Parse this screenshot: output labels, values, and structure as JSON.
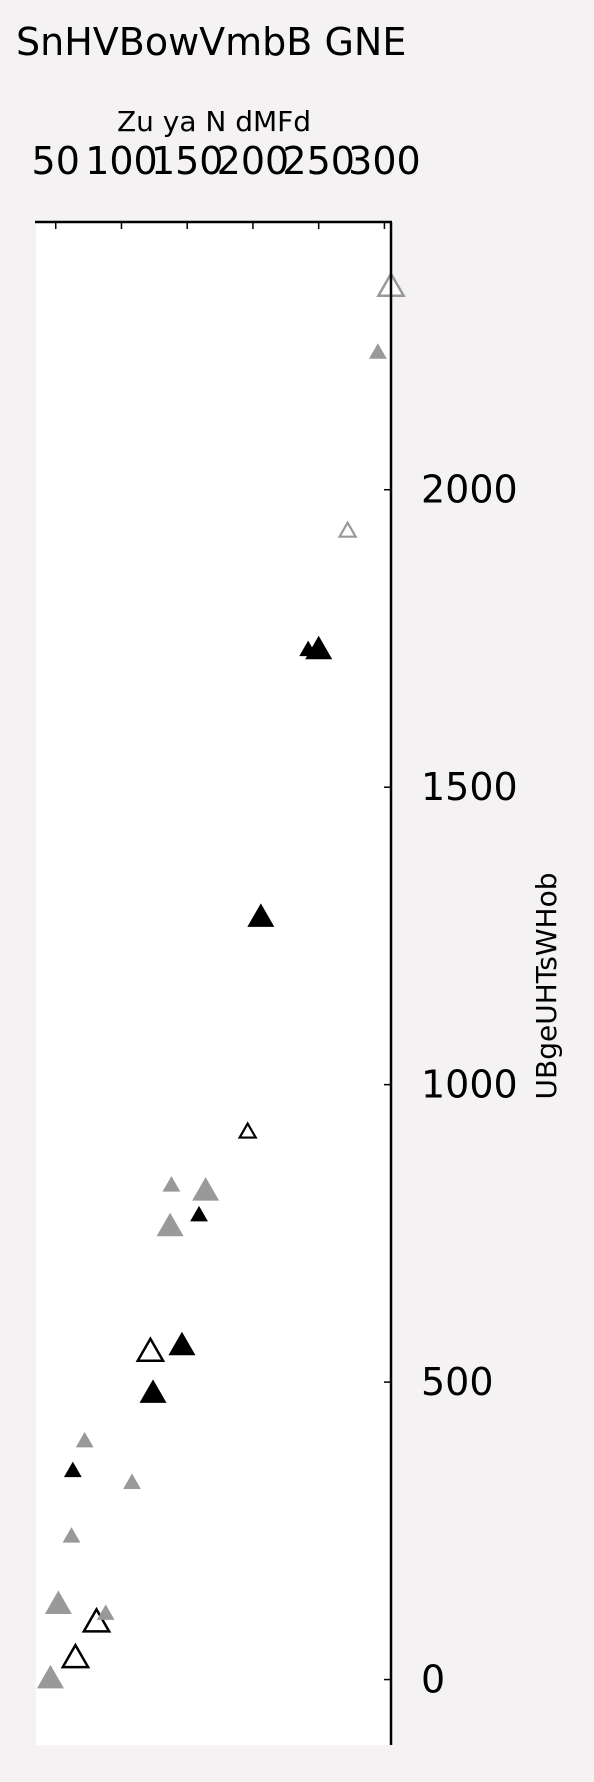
{
  "chart_data": {
    "type": "scatter",
    "title": "SnHVBowVmbB GNE",
    "xlabel": "Zu ya N dMFd",
    "ylabel": "UBgeUHTsWHob",
    "x_axis_position": "top",
    "y_axis_position": "right",
    "xlim": [
      35,
      305
    ],
    "ylim": [
      -110,
      2450
    ],
    "xticks": [
      50,
      100,
      150,
      200,
      250,
      300
    ],
    "yticks": [
      0,
      500,
      1000,
      1500,
      2000
    ],
    "grid": false,
    "legend": "none",
    "colors": {
      "black": "#000000",
      "gray": "#999999",
      "background": "#f4f2f3",
      "plot_bg": "#ffffff"
    },
    "points": [
      {
        "x": 46,
        "y": 0,
        "color": "gray",
        "fill": "filled",
        "size": "large"
      },
      {
        "x": 65,
        "y": 35,
        "color": "black",
        "fill": "open",
        "size": "large"
      },
      {
        "x": 81,
        "y": 95,
        "color": "black",
        "fill": "open",
        "size": "large"
      },
      {
        "x": 88,
        "y": 110,
        "color": "gray",
        "fill": "filled",
        "size": "small"
      },
      {
        "x": 52,
        "y": 125,
        "color": "gray",
        "fill": "filled",
        "size": "large"
      },
      {
        "x": 62,
        "y": 240,
        "color": "gray",
        "fill": "filled",
        "size": "small"
      },
      {
        "x": 108,
        "y": 330,
        "color": "gray",
        "fill": "filled",
        "size": "small"
      },
      {
        "x": 63,
        "y": 350,
        "color": "black",
        "fill": "filled",
        "size": "small"
      },
      {
        "x": 72,
        "y": 400,
        "color": "gray",
        "fill": "filled",
        "size": "small"
      },
      {
        "x": 124,
        "y": 480,
        "color": "black",
        "fill": "filled",
        "size": "large"
      },
      {
        "x": 122,
        "y": 550,
        "color": "black",
        "fill": "open",
        "size": "large"
      },
      {
        "x": 146,
        "y": 560,
        "color": "black",
        "fill": "filled",
        "size": "large"
      },
      {
        "x": 137,
        "y": 760,
        "color": "gray",
        "fill": "filled",
        "size": "large"
      },
      {
        "x": 159,
        "y": 780,
        "color": "black",
        "fill": "filled",
        "size": "small"
      },
      {
        "x": 138,
        "y": 830,
        "color": "gray",
        "fill": "filled",
        "size": "small"
      },
      {
        "x": 164,
        "y": 820,
        "color": "gray",
        "fill": "filled",
        "size": "large"
      },
      {
        "x": 196,
        "y": 920,
        "color": "black",
        "fill": "open",
        "size": "small"
      },
      {
        "x": 206,
        "y": 1280,
        "color": "black",
        "fill": "filled",
        "size": "large"
      },
      {
        "x": 242,
        "y": 1730,
        "color": "black",
        "fill": "filled",
        "size": "small"
      },
      {
        "x": 250,
        "y": 1730,
        "color": "black",
        "fill": "filled",
        "size": "large"
      },
      {
        "x": 272,
        "y": 1930,
        "color": "gray",
        "fill": "open",
        "size": "small"
      },
      {
        "x": 295,
        "y": 2230,
        "color": "gray",
        "fill": "filled",
        "size": "small"
      },
      {
        "x": 305,
        "y": 2340,
        "color": "gray",
        "fill": "open",
        "size": "large"
      }
    ]
  }
}
